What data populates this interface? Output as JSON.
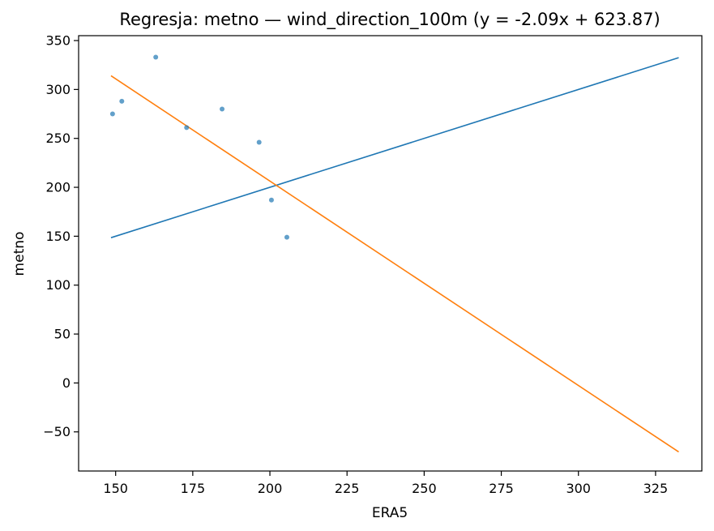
{
  "chart_data": {
    "type": "scatter",
    "title": "Regresja: metno — wind_direction_100m (y = -2.09x + 623.87)",
    "xlabel": "ERA5",
    "ylabel": "metno",
    "xlim": [
      138,
      340
    ],
    "ylim": [
      -90,
      355
    ],
    "x_ticks": [
      150,
      175,
      200,
      225,
      250,
      275,
      300,
      325
    ],
    "x_tick_labels": [
      "150",
      "175",
      "200",
      "225",
      "250",
      "275",
      "300",
      "325"
    ],
    "y_ticks": [
      -50,
      0,
      50,
      100,
      150,
      200,
      250,
      300,
      350
    ],
    "y_tick_labels": [
      "−50",
      "0",
      "50",
      "100",
      "150",
      "200",
      "250",
      "300",
      "350"
    ],
    "grid": false,
    "points": {
      "x": [
        149,
        152,
        163,
        173,
        184.5,
        196.5,
        200.5,
        205.5
      ],
      "y": [
        275,
        288,
        333,
        261,
        280,
        246,
        187,
        149
      ],
      "color": "#1f77b4"
    },
    "lines": [
      {
        "kind": "identity",
        "x": [
          148.5,
          332.5
        ],
        "y": [
          148.5,
          332.5
        ],
        "color": "#1f77b4"
      },
      {
        "kind": "regression",
        "x": [
          148.5,
          332.5
        ],
        "y": [
          314,
          -70.5
        ],
        "color": "#ff7f0e"
      }
    ]
  }
}
